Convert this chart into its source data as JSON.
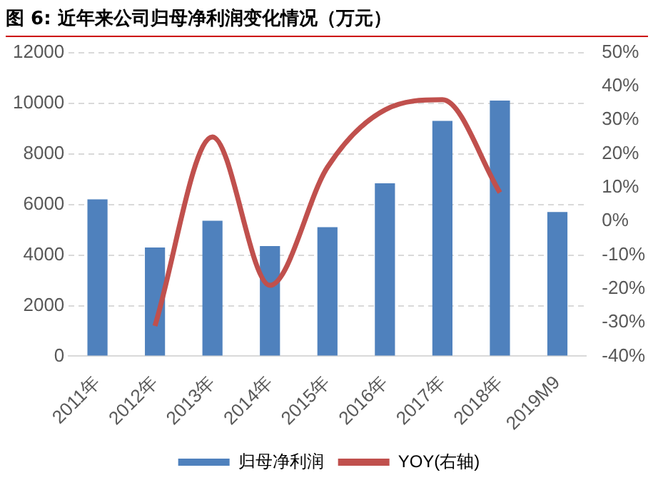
{
  "chart_data": {
    "type": "bar",
    "title": "图 6:  近年来公司归母净利润变化情况（万元）",
    "categories": [
      "2011年",
      "2012年",
      "2013年",
      "2014年",
      "2015年",
      "2016年",
      "2017年",
      "2018年",
      "2019M9"
    ],
    "series": [
      {
        "name": "归母净利润",
        "color": "#4f81bd",
        "values": [
          6200,
          4300,
          5350,
          4350,
          5100,
          6830,
          9300,
          10100,
          5700
        ]
      },
      {
        "name": "YOY(右轴)",
        "type": "line",
        "axis": "y2",
        "color": "#c0504d",
        "values": [
          null,
          -31,
          25,
          -19,
          16,
          33,
          36,
          8.5,
          null
        ]
      }
    ],
    "ylim": [
      0,
      12000
    ],
    "yticks": [
      0,
      2000,
      4000,
      6000,
      8000,
      10000,
      12000
    ],
    "y2lim": [
      -40,
      50
    ],
    "y2ticks": [
      {
        "value": -40,
        "label": "-40%"
      },
      {
        "value": -30,
        "label": "-30%"
      },
      {
        "value": -20,
        "label": "-20%"
      },
      {
        "value": -10,
        "label": "-10%"
      },
      {
        "value": 0,
        "label": "0%"
      },
      {
        "value": 10,
        "label": "10%"
      },
      {
        "value": 20,
        "label": "20%"
      },
      {
        "value": 30,
        "label": "30%"
      },
      {
        "value": 40,
        "label": "40%"
      },
      {
        "value": 50,
        "label": "50%"
      }
    ],
    "grid": "y",
    "legend": "bottom",
    "marker": "none"
  }
}
